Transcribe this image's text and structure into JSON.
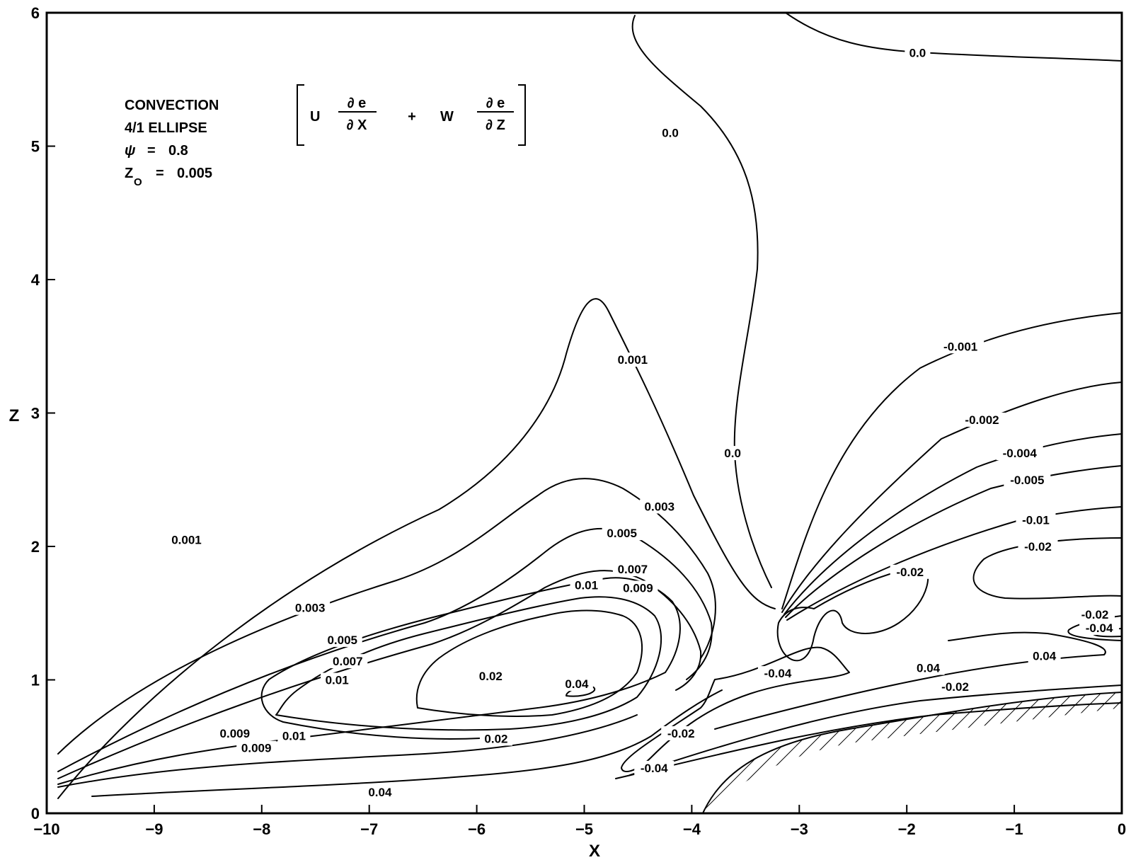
{
  "chart_data": {
    "type": "contour",
    "xlabel": "X",
    "ylabel": "Z",
    "xlim": [
      -10,
      0
    ],
    "ylim": [
      0,
      6
    ],
    "x_ticks": [
      "−10",
      "−9",
      "−8",
      "−7",
      "−6",
      "−5",
      "−4",
      "−3",
      "−2",
      "−1",
      "0"
    ],
    "y_ticks": [
      "0",
      "1",
      "2",
      "3",
      "4",
      "5",
      "6"
    ],
    "grid": false,
    "annotation": {
      "lines": [
        "CONVECTION",
        "4/1 ELLIPSE"
      ],
      "psi_symbol": "ψ",
      "psi_eq": "=",
      "psi_value": "0.8",
      "z_symbol": "Z",
      "z_sub": "O",
      "z_eq": "=",
      "z_value": "0.005"
    },
    "formula": {
      "u": "U",
      "de": "∂ e",
      "dx": "∂ X",
      "plus": "+",
      "w": "W",
      "dz": "∂ Z"
    },
    "contour_labels": [
      {
        "text": "0.0",
        "x": -1.9,
        "z": 5.7
      },
      {
        "text": "0.0",
        "x": -4.2,
        "z": 5.1
      },
      {
        "text": "0.0",
        "x": -3.62,
        "z": 2.7
      },
      {
        "text": "0.001",
        "x": -4.55,
        "z": 3.4
      },
      {
        "text": "0.001",
        "x": -8.7,
        "z": 2.05
      },
      {
        "text": "-0.001",
        "x": -1.5,
        "z": 3.5
      },
      {
        "text": "-0.002",
        "x": -1.3,
        "z": 2.95
      },
      {
        "text": "-0.004",
        "x": -0.95,
        "z": 2.7
      },
      {
        "text": "-0.005",
        "x": -0.88,
        "z": 2.5
      },
      {
        "text": "-0.01",
        "x": -0.8,
        "z": 2.2
      },
      {
        "text": "-0.02",
        "x": -0.78,
        "z": 2.0
      },
      {
        "text": "-0.02",
        "x": -1.97,
        "z": 1.81
      },
      {
        "text": "-0.02",
        "x": -0.25,
        "z": 1.49
      },
      {
        "text": "-0.04",
        "x": -0.21,
        "z": 1.39
      },
      {
        "text": "0.003",
        "x": -4.3,
        "z": 2.3
      },
      {
        "text": "0.003",
        "x": -7.55,
        "z": 1.54
      },
      {
        "text": "0.005",
        "x": -4.65,
        "z": 2.1
      },
      {
        "text": "0.005",
        "x": -7.25,
        "z": 1.3
      },
      {
        "text": "0.007",
        "x": -4.55,
        "z": 1.83
      },
      {
        "text": "0.007",
        "x": -7.2,
        "z": 1.14
      },
      {
        "text": "0.009",
        "x": -4.5,
        "z": 1.69
      },
      {
        "text": "0.009",
        "x": -8.25,
        "z": 0.6
      },
      {
        "text": "0.009",
        "x": -8.05,
        "z": 0.49
      },
      {
        "text": "0.01",
        "x": -4.98,
        "z": 1.71
      },
      {
        "text": "0.01",
        "x": -7.3,
        "z": 1.0
      },
      {
        "text": "0.01",
        "x": -7.7,
        "z": 0.58
      },
      {
        "text": "0.02",
        "x": -5.87,
        "z": 1.03
      },
      {
        "text": "0.02",
        "x": -5.82,
        "z": 0.56
      },
      {
        "text": "0.04",
        "x": -5.07,
        "z": 0.97
      },
      {
        "text": "0.04",
        "x": -6.9,
        "z": 0.16
      },
      {
        "text": "0.04",
        "x": -1.8,
        "z": 1.09
      },
      {
        "text": "0.04",
        "x": -0.72,
        "z": 1.18
      },
      {
        "text": "-0.04",
        "x": -3.2,
        "z": 1.05
      },
      {
        "text": "-0.02",
        "x": -4.1,
        "z": 0.6
      },
      {
        "text": "-0.04",
        "x": -4.35,
        "z": 0.34
      },
      {
        "text": "-0.02",
        "x": -1.55,
        "z": 0.95
      }
    ]
  }
}
